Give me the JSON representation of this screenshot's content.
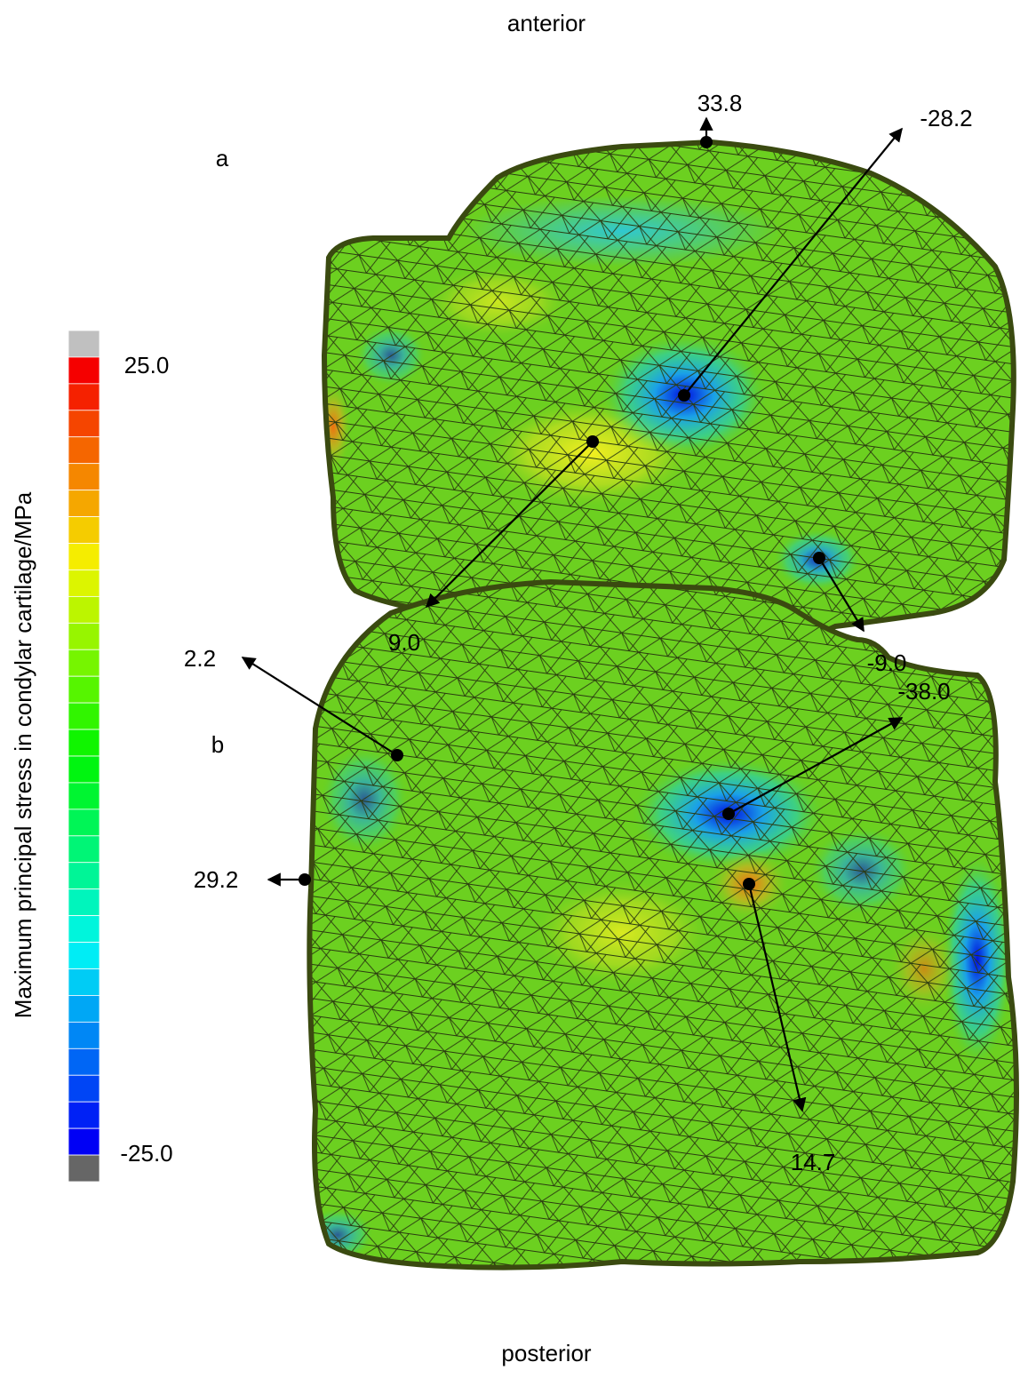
{
  "header": {
    "top": "anterior",
    "bottom": "posterior"
  },
  "colorbar": {
    "label": "Maximum principal stress in condylar cartilage/MPa",
    "max": "25.0",
    "min": "-25.0"
  },
  "panels": [
    {
      "label": "a",
      "annotations": [
        "33.8",
        "-28.2",
        "9.0",
        "-9.0"
      ]
    },
    {
      "label": "b",
      "annotations": [
        "-38.0",
        "2.2",
        "29.2",
        "14.7"
      ]
    }
  ]
}
